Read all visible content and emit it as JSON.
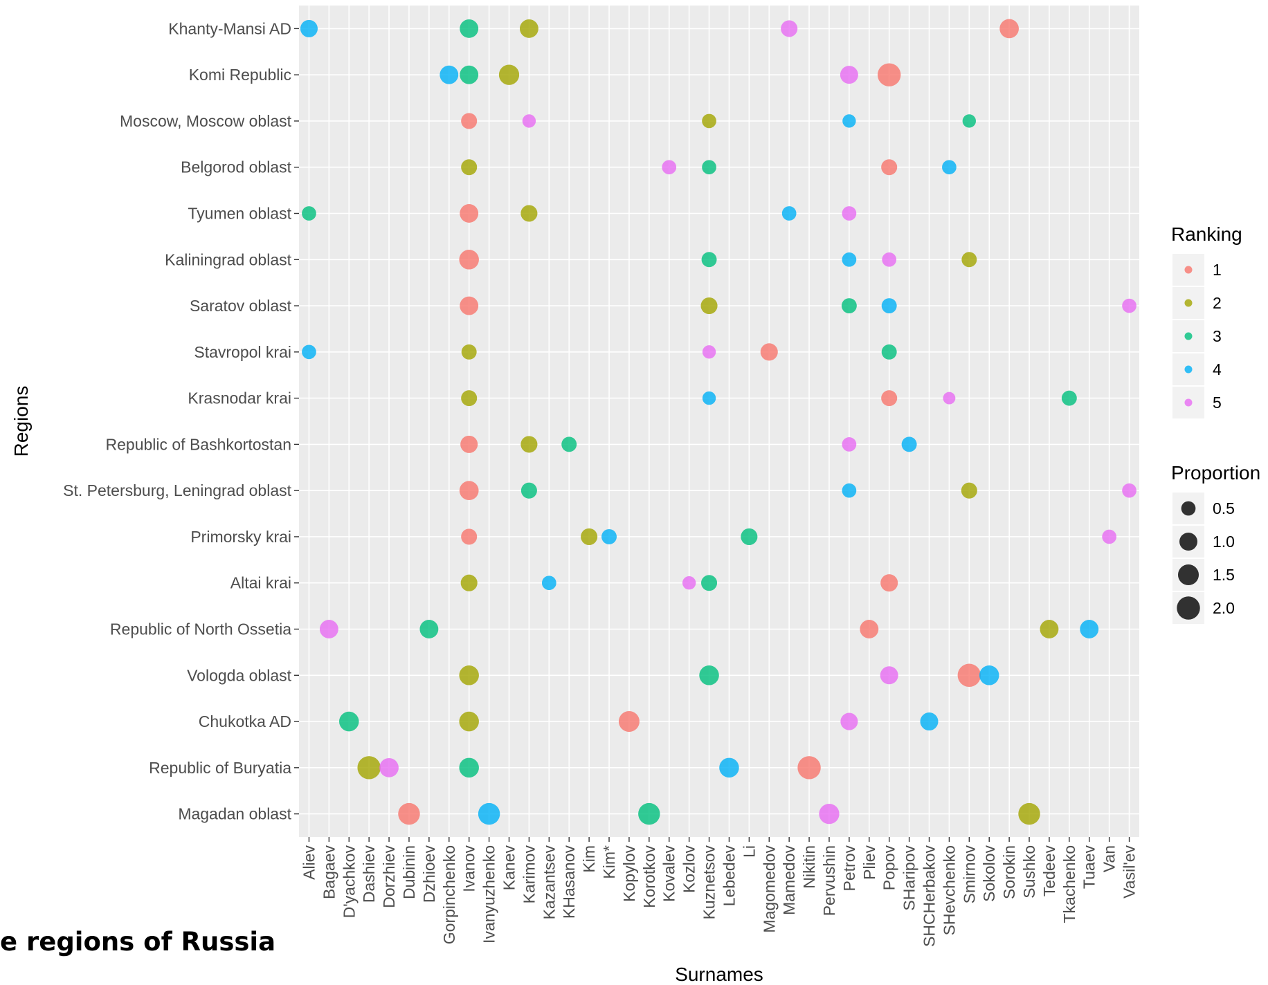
{
  "caption_fragment": "e regions of Russia",
  "chart_data": {
    "type": "scatter",
    "xlabel": "Surnames",
    "ylabel": "Regions",
    "x_categories": [
      "Aliev",
      "Bagaev",
      "D'yachkov",
      "Dashiev",
      "Dorzhiev",
      "Dubinin",
      "Dzhioev",
      "Gorpinchenko",
      "Ivanov",
      "Ivanyuzhenko",
      "Kanev",
      "Karimov",
      "Kazantsev",
      "KHasanov",
      "Kim",
      "Kim*",
      "Kopylov",
      "Korotkov",
      "Kovalev",
      "Kozlov",
      "Kuznetsov",
      "Lebedev",
      "Li",
      "Magomedov",
      "Mamedov",
      "Nikitin",
      "Pervushin",
      "Petrov",
      "Pliev",
      "Popov",
      "SHaripov",
      "SHCHerbakov",
      "SHevchenko",
      "Smirnov",
      "Sokolov",
      "Sorokin",
      "Sushko",
      "Tedeev",
      "Tkachenko",
      "Tuaev",
      "Van",
      "Vasil'ev"
    ],
    "y_categories": [
      "Khanty-Mansi AD",
      "Komi Republic",
      "Moscow, Moscow oblast",
      "Belgorod oblast",
      "Tyumen oblast",
      "Kaliningrad oblast",
      "Saratov oblast",
      "Stavropol krai",
      "Krasnodar krai",
      "Republic of Bashkortostan",
      "St. Petersburg, Leningrad oblast",
      "Primorsky krai",
      "Altai krai",
      "Republic of North Ossetia",
      "Vologda oblast",
      "Chukotka AD",
      "Republic of Buryatia",
      "Magadan oblast"
    ],
    "legend_ranking": {
      "title": "Ranking",
      "levels": [
        "1",
        "2",
        "3",
        "4",
        "5"
      ],
      "colors": [
        "#F8766D",
        "#A3A500",
        "#00BF7D",
        "#00B0F6",
        "#E76BF3"
      ]
    },
    "legend_proportion": {
      "title": "Proportion",
      "breaks": [
        "0.5",
        "1.0",
        "1.5",
        "2.0"
      ],
      "values": [
        0.5,
        1.0,
        1.5,
        2.0
      ]
    },
    "legend_placement": "right",
    "grid": true,
    "points": [
      {
        "region": "Khanty-Mansi AD",
        "surname": "Sorokin",
        "rank": 1,
        "proportion": 1.2
      },
      {
        "region": "Khanty-Mansi AD",
        "surname": "Ivanov",
        "rank": 3,
        "proportion": 1.1
      },
      {
        "region": "Khanty-Mansi AD",
        "surname": "Karimov",
        "rank": 2,
        "proportion": 1.1
      },
      {
        "region": "Khanty-Mansi AD",
        "surname": "Aliev",
        "rank": 4,
        "proportion": 0.9
      },
      {
        "region": "Khanty-Mansi AD",
        "surname": "Mamedov",
        "rank": 5,
        "proportion": 0.8
      },
      {
        "region": "Komi Republic",
        "surname": "Popov",
        "rank": 1,
        "proportion": 2.0
      },
      {
        "region": "Komi Republic",
        "surname": "Kanev",
        "rank": 2,
        "proportion": 1.4
      },
      {
        "region": "Komi Republic",
        "surname": "Ivanov",
        "rank": 3,
        "proportion": 1.1
      },
      {
        "region": "Komi Republic",
        "surname": "Gorpinchenko",
        "rank": 4,
        "proportion": 1.1
      },
      {
        "region": "Komi Republic",
        "surname": "Petrov",
        "rank": 5,
        "proportion": 1.0
      },
      {
        "region": "Moscow, Moscow oblast",
        "surname": "Ivanov",
        "rank": 1,
        "proportion": 0.7
      },
      {
        "region": "Moscow, Moscow oblast",
        "surname": "Kuznetsov",
        "rank": 2,
        "proportion": 0.5
      },
      {
        "region": "Moscow, Moscow oblast",
        "surname": "Smirnov",
        "rank": 3,
        "proportion": 0.4
      },
      {
        "region": "Moscow, Moscow oblast",
        "surname": "Petrov",
        "rank": 4,
        "proportion": 0.4
      },
      {
        "region": "Moscow, Moscow oblast",
        "surname": "Karimov",
        "rank": 5,
        "proportion": 0.4
      },
      {
        "region": "Belgorod oblast",
        "surname": "Popov",
        "rank": 1,
        "proportion": 0.7
      },
      {
        "region": "Belgorod oblast",
        "surname": "Ivanov",
        "rank": 2,
        "proportion": 0.7
      },
      {
        "region": "Belgorod oblast",
        "surname": "Kuznetsov",
        "rank": 3,
        "proportion": 0.5
      },
      {
        "region": "Belgorod oblast",
        "surname": "SHevchenko",
        "rank": 4,
        "proportion": 0.5
      },
      {
        "region": "Belgorod oblast",
        "surname": "Kovalev",
        "rank": 5,
        "proportion": 0.5
      },
      {
        "region": "Tyumen oblast",
        "surname": "Ivanov",
        "rank": 1,
        "proportion": 1.1
      },
      {
        "region": "Tyumen oblast",
        "surname": "Karimov",
        "rank": 2,
        "proportion": 0.8
      },
      {
        "region": "Tyumen oblast",
        "surname": "Aliev",
        "rank": 3,
        "proportion": 0.5
      },
      {
        "region": "Tyumen oblast",
        "surname": "Mamedov",
        "rank": 4,
        "proportion": 0.5
      },
      {
        "region": "Tyumen oblast",
        "surname": "Petrov",
        "rank": 5,
        "proportion": 0.5
      },
      {
        "region": "Kaliningrad oblast",
        "surname": "Ivanov",
        "rank": 1,
        "proportion": 1.3
      },
      {
        "region": "Kaliningrad oblast",
        "surname": "Smirnov",
        "rank": 2,
        "proportion": 0.6
      },
      {
        "region": "Kaliningrad oblast",
        "surname": "Kuznetsov",
        "rank": 3,
        "proportion": 0.6
      },
      {
        "region": "Kaliningrad oblast",
        "surname": "Petrov",
        "rank": 4,
        "proportion": 0.5
      },
      {
        "region": "Kaliningrad oblast",
        "surname": "Popov",
        "rank": 5,
        "proportion": 0.5
      },
      {
        "region": "Saratov oblast",
        "surname": "Ivanov",
        "rank": 1,
        "proportion": 1.1
      },
      {
        "region": "Saratov oblast",
        "surname": "Kuznetsov",
        "rank": 2,
        "proportion": 0.8
      },
      {
        "region": "Saratov oblast",
        "surname": "Petrov",
        "rank": 3,
        "proportion": 0.6
      },
      {
        "region": "Saratov oblast",
        "surname": "Popov",
        "rank": 4,
        "proportion": 0.6
      },
      {
        "region": "Saratov oblast",
        "surname": "Vasil'ev",
        "rank": 5,
        "proportion": 0.5
      },
      {
        "region": "Stavropol krai",
        "surname": "Magomedov",
        "rank": 1,
        "proportion": 0.9
      },
      {
        "region": "Stavropol krai",
        "surname": "Ivanov",
        "rank": 2,
        "proportion": 0.6
      },
      {
        "region": "Stavropol krai",
        "surname": "Popov",
        "rank": 3,
        "proportion": 0.6
      },
      {
        "region": "Stavropol krai",
        "surname": "Aliev",
        "rank": 4,
        "proportion": 0.5
      },
      {
        "region": "Stavropol krai",
        "surname": "Kuznetsov",
        "rank": 5,
        "proportion": 0.4
      },
      {
        "region": "Krasnodar krai",
        "surname": "Popov",
        "rank": 1,
        "proportion": 0.7
      },
      {
        "region": "Krasnodar krai",
        "surname": "Ivanov",
        "rank": 2,
        "proportion": 0.7
      },
      {
        "region": "Krasnodar krai",
        "surname": "Tkachenko",
        "rank": 3,
        "proportion": 0.6
      },
      {
        "region": "Krasnodar krai",
        "surname": "Kuznetsov",
        "rank": 4,
        "proportion": 0.4
      },
      {
        "region": "Krasnodar krai",
        "surname": "SHevchenko",
        "rank": 5,
        "proportion": 0.3
      },
      {
        "region": "Republic of Bashkortostan",
        "surname": "Ivanov",
        "rank": 1,
        "proportion": 0.9
      },
      {
        "region": "Republic of Bashkortostan",
        "surname": "Karimov",
        "rank": 2,
        "proportion": 0.8
      },
      {
        "region": "Republic of Bashkortostan",
        "surname": "KHasanov",
        "rank": 3,
        "proportion": 0.6
      },
      {
        "region": "Republic of Bashkortostan",
        "surname": "SHaripov",
        "rank": 4,
        "proportion": 0.6
      },
      {
        "region": "Republic of Bashkortostan",
        "surname": "Petrov",
        "rank": 5,
        "proportion": 0.5
      },
      {
        "region": "St. Petersburg, Leningrad oblast",
        "surname": "Ivanov",
        "rank": 1,
        "proportion": 1.2
      },
      {
        "region": "St. Petersburg, Leningrad oblast",
        "surname": "Smirnov",
        "rank": 2,
        "proportion": 0.7
      },
      {
        "region": "St. Petersburg, Leningrad oblast",
        "surname": "Karimov",
        "rank": 3,
        "proportion": 0.7
      },
      {
        "region": "St. Petersburg, Leningrad oblast",
        "surname": "Petrov",
        "rank": 4,
        "proportion": 0.5
      },
      {
        "region": "St. Petersburg, Leningrad oblast",
        "surname": "Vasil'ev",
        "rank": 5,
        "proportion": 0.5
      },
      {
        "region": "Primorsky krai",
        "surname": "Ivanov",
        "rank": 1,
        "proportion": 0.7
      },
      {
        "region": "Primorsky krai",
        "surname": "Kim",
        "rank": 2,
        "proportion": 0.8
      },
      {
        "region": "Primorsky krai",
        "surname": "Li",
        "rank": 3,
        "proportion": 0.8
      },
      {
        "region": "Primorsky krai",
        "surname": "Kim*",
        "rank": 4,
        "proportion": 0.6
      },
      {
        "region": "Primorsky krai",
        "surname": "Van",
        "rank": 5,
        "proportion": 0.5
      },
      {
        "region": "Altai krai",
        "surname": "Popov",
        "rank": 1,
        "proportion": 0.9
      },
      {
        "region": "Altai krai",
        "surname": "Ivanov",
        "rank": 2,
        "proportion": 0.8
      },
      {
        "region": "Altai krai",
        "surname": "Kuznetsov",
        "rank": 3,
        "proportion": 0.7
      },
      {
        "region": "Altai krai",
        "surname": "Kazantsev",
        "rank": 4,
        "proportion": 0.5
      },
      {
        "region": "Altai krai",
        "surname": "Kozlov",
        "rank": 5,
        "proportion": 0.4
      },
      {
        "region": "Republic of North Ossetia",
        "surname": "Pliev",
        "rank": 1,
        "proportion": 1.1
      },
      {
        "region": "Republic of North Ossetia",
        "surname": "Tedeev",
        "rank": 2,
        "proportion": 1.1
      },
      {
        "region": "Republic of North Ossetia",
        "surname": "Dzhioev",
        "rank": 3,
        "proportion": 1.1
      },
      {
        "region": "Republic of North Ossetia",
        "surname": "Tuaev",
        "rank": 4,
        "proportion": 1.1
      },
      {
        "region": "Republic of North Ossetia",
        "surname": "Bagaev",
        "rank": 5,
        "proportion": 1.1
      },
      {
        "region": "Vologda oblast",
        "surname": "Smirnov",
        "rank": 1,
        "proportion": 2.0
      },
      {
        "region": "Vologda oblast",
        "surname": "Ivanov",
        "rank": 2,
        "proportion": 1.3
      },
      {
        "region": "Vologda oblast",
        "surname": "Kuznetsov",
        "rank": 3,
        "proportion": 1.3
      },
      {
        "region": "Vologda oblast",
        "surname": "Sokolov",
        "rank": 4,
        "proportion": 1.3
      },
      {
        "region": "Vologda oblast",
        "surname": "Popov",
        "rank": 5,
        "proportion": 1.0
      },
      {
        "region": "Chukotka AD",
        "surname": "Kopylov",
        "rank": 1,
        "proportion": 1.5
      },
      {
        "region": "Chukotka AD",
        "surname": "Ivanov",
        "rank": 2,
        "proportion": 1.3
      },
      {
        "region": "Chukotka AD",
        "surname": "D'yachkov",
        "rank": 3,
        "proportion": 1.3
      },
      {
        "region": "Chukotka AD",
        "surname": "SHCHerbakov",
        "rank": 4,
        "proportion": 1.0
      },
      {
        "region": "Chukotka AD",
        "surname": "Petrov",
        "rank": 5,
        "proportion": 0.9
      },
      {
        "region": "Republic of Buryatia",
        "surname": "Nikitin",
        "rank": 1,
        "proportion": 2.0
      },
      {
        "region": "Republic of Buryatia",
        "surname": "Dashiev",
        "rank": 2,
        "proportion": 2.0
      },
      {
        "region": "Republic of Buryatia",
        "surname": "Ivanov",
        "rank": 3,
        "proportion": 1.3
      },
      {
        "region": "Republic of Buryatia",
        "surname": "Lebedev",
        "rank": 4,
        "proportion": 1.3
      },
      {
        "region": "Republic of Buryatia",
        "surname": "Dorzhiev",
        "rank": 5,
        "proportion": 1.2
      },
      {
        "region": "Magadan oblast",
        "surname": "Dubinin",
        "rank": 1,
        "proportion": 1.7
      },
      {
        "region": "Magadan oblast",
        "surname": "Sushko",
        "rank": 2,
        "proportion": 1.7
      },
      {
        "region": "Magadan oblast",
        "surname": "Korotkov",
        "rank": 3,
        "proportion": 1.7
      },
      {
        "region": "Magadan oblast",
        "surname": "Ivanyuzhenko",
        "rank": 4,
        "proportion": 1.7
      },
      {
        "region": "Magadan oblast",
        "surname": "Pervushin",
        "rank": 5,
        "proportion": 1.4
      }
    ]
  }
}
